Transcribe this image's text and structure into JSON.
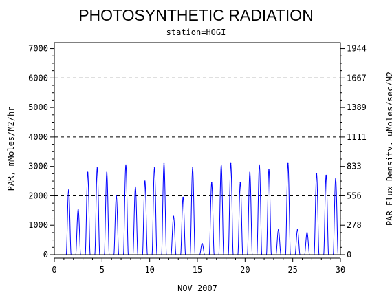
{
  "chart_data": {
    "type": "line",
    "title": "PHOTOSYNTHETIC RADIATION",
    "subtitle": "station=HOGI",
    "xlabel": "NOV 2007",
    "ylabel": "PAR, mMoles/M2/hr",
    "y2label": "PAR Flux Density, uMoles/sec/M2",
    "xlim": [
      0,
      30
    ],
    "ylim": [
      0,
      7200
    ],
    "x_ticks": [
      0,
      5,
      10,
      15,
      20,
      25,
      30
    ],
    "y_ticks": [
      0,
      1000,
      2000,
      3000,
      4000,
      5000,
      6000,
      7000
    ],
    "y_tick_labels": [
      "0",
      "1000",
      "2000",
      "3000",
      "4000",
      "5000",
      "6000",
      "7000"
    ],
    "y2_ticks": [
      0,
      1000,
      2000,
      3000,
      4000,
      5000,
      6000,
      7000
    ],
    "y2_tick_labels": [
      "0",
      "278",
      "556",
      "833",
      "1111",
      "1389",
      "1667",
      "1944"
    ],
    "reference_lines_y": [
      2000,
      4000,
      6000
    ],
    "line_color": "#0000ff",
    "grid": false,
    "day_peaks": [
      {
        "day": 1,
        "peak": 2200
      },
      {
        "day": 2,
        "peak": 1550
      },
      {
        "day": 3,
        "peak": 2800
      },
      {
        "day": 4,
        "peak": 2950
      },
      {
        "day": 5,
        "peak": 2800
      },
      {
        "day": 6,
        "peak": 2000
      },
      {
        "day": 7,
        "peak": 3050
      },
      {
        "day": 8,
        "peak": 2300
      },
      {
        "day": 9,
        "peak": 2500
      },
      {
        "day": 10,
        "peak": 2950
      },
      {
        "day": 11,
        "peak": 3100
      },
      {
        "day": 12,
        "peak": 1300
      },
      {
        "day": 13,
        "peak": 1950
      },
      {
        "day": 14,
        "peak": 2950
      },
      {
        "day": 15,
        "peak": 380
      },
      {
        "day": 16,
        "peak": 2450
      },
      {
        "day": 17,
        "peak": 3050
      },
      {
        "day": 18,
        "peak": 3100
      },
      {
        "day": 19,
        "peak": 2450
      },
      {
        "day": 20,
        "peak": 2800
      },
      {
        "day": 21,
        "peak": 3050
      },
      {
        "day": 22,
        "peak": 2900
      },
      {
        "day": 23,
        "peak": 850
      },
      {
        "day": 24,
        "peak": 3100
      },
      {
        "day": 25,
        "peak": 850
      },
      {
        "day": 26,
        "peak": 750
      },
      {
        "day": 27,
        "peak": 2750
      },
      {
        "day": 28,
        "peak": 2700
      },
      {
        "day": 29,
        "peak": 2600
      }
    ]
  }
}
